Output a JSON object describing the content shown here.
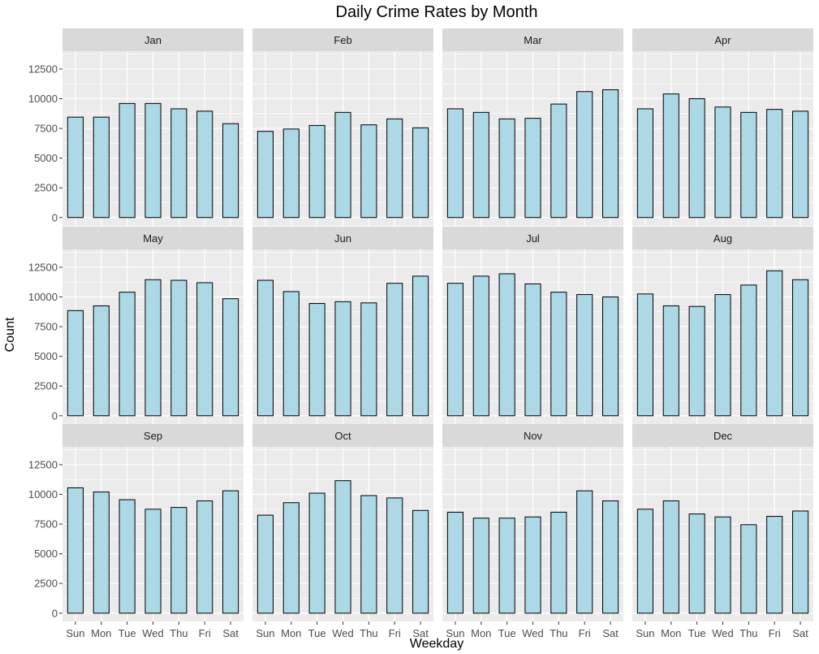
{
  "chart_data": {
    "type": "bar",
    "title": "Daily Crime Rates by Month",
    "xlabel": "Weekday",
    "ylabel": "Count",
    "ylim": [
      -700,
      14000
    ],
    "yticks": [
      0,
      2500,
      5000,
      7500,
      10000,
      12500
    ],
    "categories": [
      "Sun",
      "Mon",
      "Tue",
      "Wed",
      "Thu",
      "Fri",
      "Sat"
    ],
    "grid": true,
    "bar_fill": "#add8e6",
    "bar_stroke": "#000000",
    "panel_background": "#ebebeb",
    "strip_background": "#d9d9d9",
    "panels": [
      {
        "name": "Jan",
        "values": [
          8450,
          8450,
          9600,
          9600,
          9150,
          8950,
          7900
        ]
      },
      {
        "name": "Feb",
        "values": [
          7250,
          7450,
          7750,
          8850,
          7800,
          8300,
          7550
        ]
      },
      {
        "name": "Mar",
        "values": [
          9150,
          8850,
          8300,
          8350,
          9550,
          10600,
          10750
        ]
      },
      {
        "name": "Apr",
        "values": [
          9150,
          10400,
          10000,
          9300,
          8850,
          9100,
          8950
        ]
      },
      {
        "name": "May",
        "values": [
          8850,
          9250,
          10400,
          11450,
          11400,
          11200,
          9850
        ]
      },
      {
        "name": "Jun",
        "values": [
          11400,
          10450,
          9450,
          9600,
          9500,
          11150,
          11750
        ]
      },
      {
        "name": "Jul",
        "values": [
          11150,
          11750,
          11950,
          11100,
          10400,
          10200,
          10000
        ]
      },
      {
        "name": "Aug",
        "values": [
          10250,
          9250,
          9200,
          10200,
          11000,
          12200,
          11450
        ]
      },
      {
        "name": "Sep",
        "values": [
          10550,
          10200,
          9550,
          8750,
          8900,
          9450,
          10300
        ]
      },
      {
        "name": "Oct",
        "values": [
          8250,
          9300,
          10100,
          11150,
          9900,
          9700,
          8650
        ]
      },
      {
        "name": "Nov",
        "values": [
          8500,
          8000,
          8000,
          8100,
          8500,
          10300,
          9450
        ]
      },
      {
        "name": "Dec",
        "values": [
          8750,
          9450,
          8350,
          8100,
          7450,
          8150,
          8600
        ]
      }
    ]
  }
}
